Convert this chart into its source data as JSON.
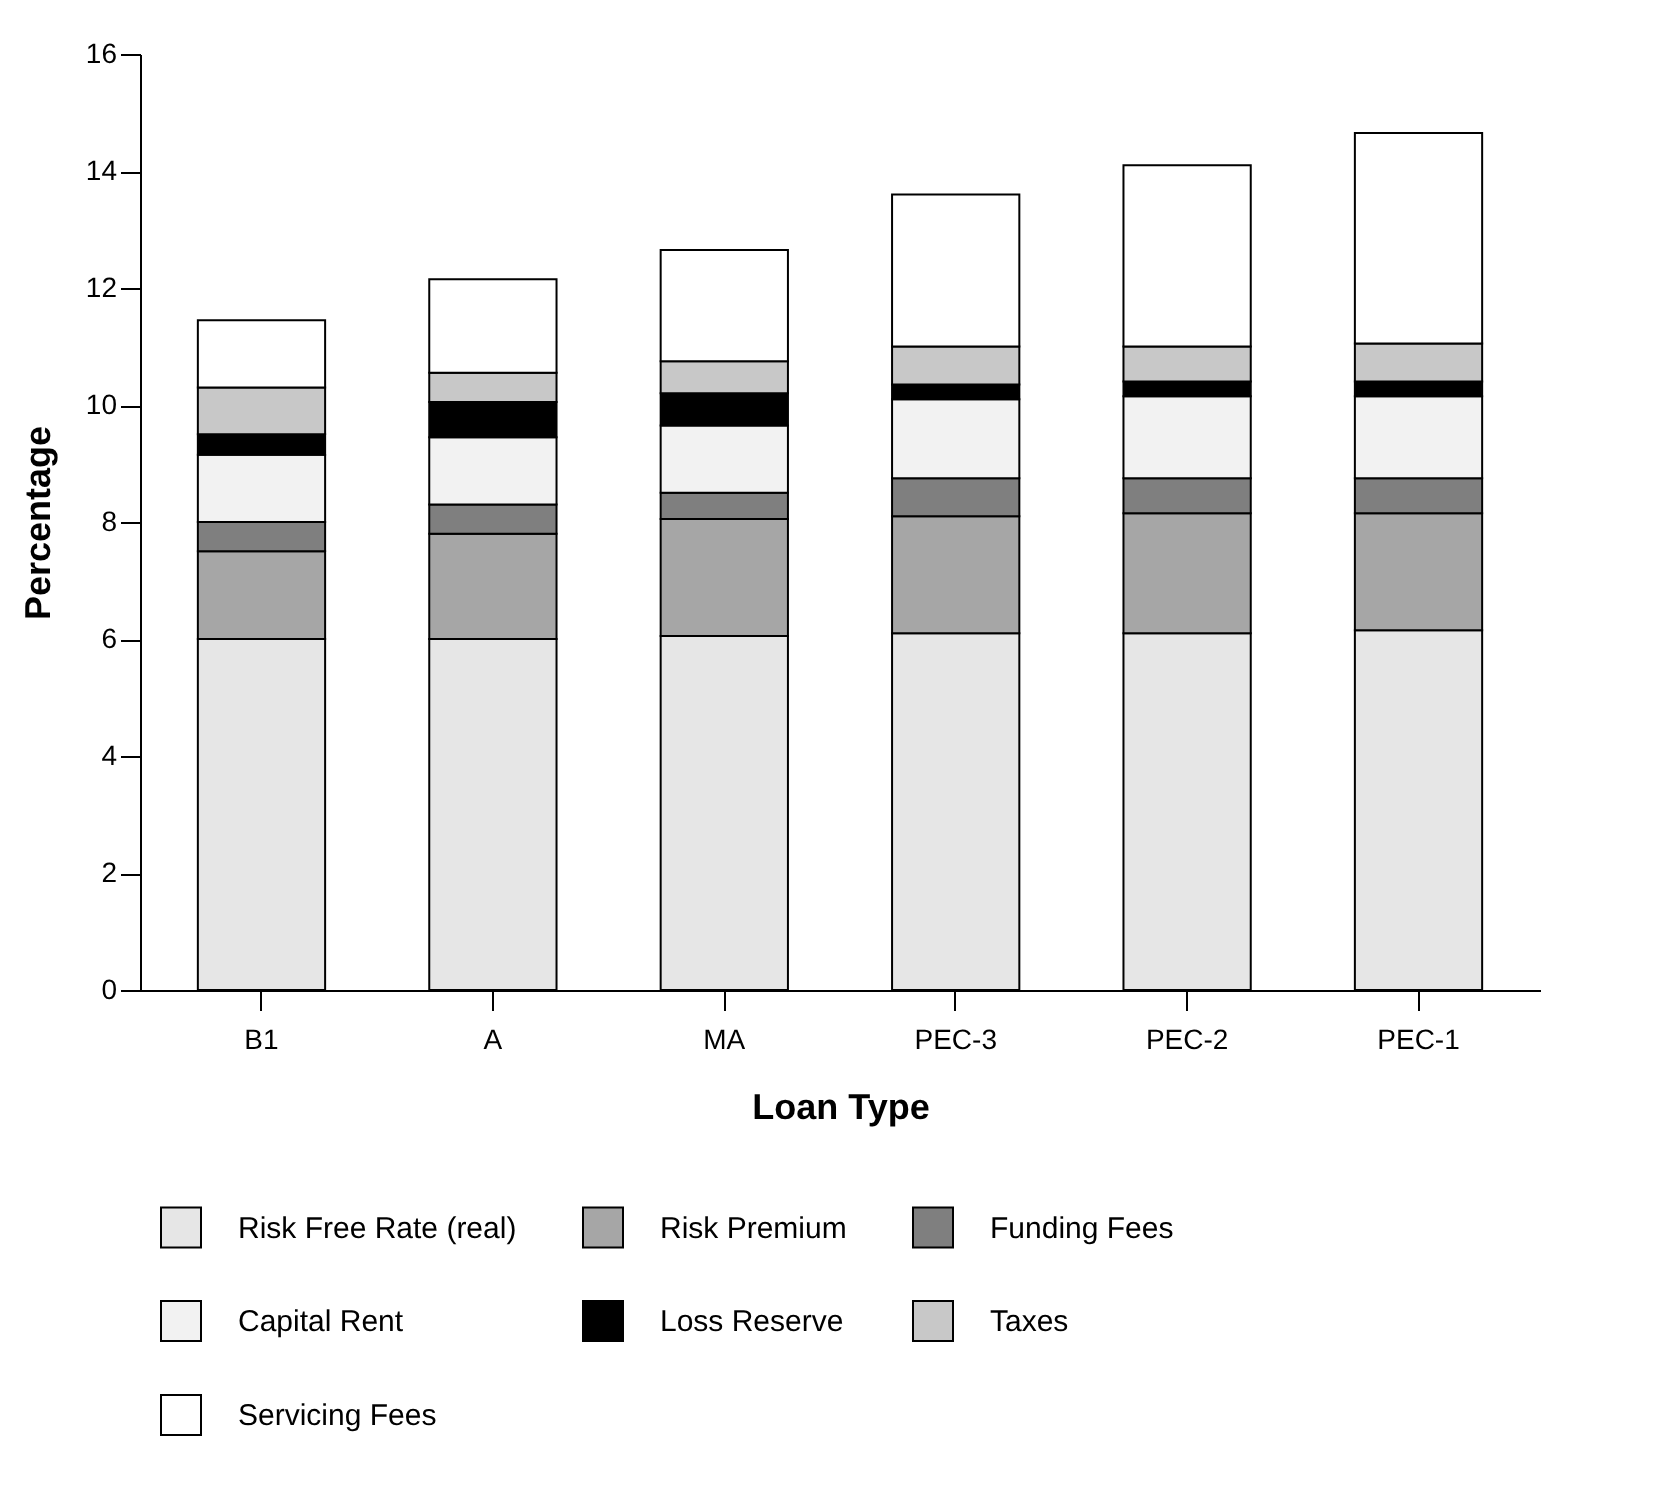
{
  "chart_data": {
    "type": "bar",
    "stacked": true,
    "xlabel": "Loan Type",
    "ylabel": "Percentage",
    "categories": [
      "B1",
      "A",
      "MA",
      "PEC-3",
      "PEC-2",
      "PEC-1"
    ],
    "ylim": [
      0,
      16
    ],
    "yticks": [
      0,
      2,
      4,
      6,
      8,
      10,
      12,
      14,
      16
    ],
    "grid": false,
    "legend": "bottom",
    "series": [
      {
        "name": "Risk Free Rate (real)",
        "color": "#e6e6e6",
        "values": [
          6.0,
          6.0,
          6.05,
          6.1,
          6.1,
          6.15
        ]
      },
      {
        "name": "Risk Premium",
        "color": "#a6a6a6",
        "values": [
          1.5,
          1.8,
          2.0,
          2.0,
          2.05,
          2.0
        ]
      },
      {
        "name": "Funding Fees",
        "color": "#7f7f7f",
        "values": [
          0.5,
          0.5,
          0.45,
          0.65,
          0.6,
          0.6
        ]
      },
      {
        "name": "Capital Rent",
        "color": "#f2f2f2",
        "values": [
          1.15,
          1.15,
          1.15,
          1.35,
          1.4,
          1.4
        ]
      },
      {
        "name": "Loss Reserve",
        "color": "#000000",
        "values": [
          0.35,
          0.6,
          0.55,
          0.25,
          0.25,
          0.25
        ]
      },
      {
        "name": "Taxes",
        "color": "#c8c8c8",
        "values": [
          0.8,
          0.5,
          0.55,
          0.65,
          0.6,
          0.65
        ]
      },
      {
        "name": "Servicing Fees",
        "color": "#ffffff",
        "values": [
          1.15,
          1.6,
          1.9,
          2.6,
          3.1,
          3.6
        ]
      }
    ]
  }
}
